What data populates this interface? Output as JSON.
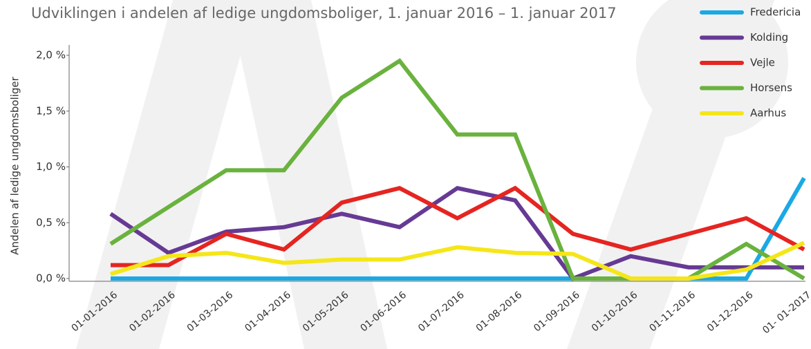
{
  "chart_data": {
    "type": "line",
    "title": "Udviklingen i andelen af ledige ungdomsboliger, 1. januar 2016 – 1. januar 2017",
    "y_label": "Andelen af ledige ungdomsboliger",
    "categories": [
      "01-01-2016",
      "01-02-2016",
      "01-03-2016",
      "01-04-2016",
      "01-05-2016",
      "01-06-2016",
      "01-07-2016",
      "01-08-2016",
      "01-09-2016",
      "01-10-2016",
      "01-11-2016",
      "01-12-2016",
      "01- 01-2017"
    ],
    "series": [
      {
        "name": "Fredericia",
        "color": "#1aa9e3",
        "values": [
          0,
          0,
          0,
          0,
          0,
          0,
          0,
          0,
          0,
          0,
          0,
          0,
          0.9
        ]
      },
      {
        "name": "Kolding",
        "color": "#663a94",
        "values": [
          0.58,
          0.23,
          0.42,
          0.46,
          0.58,
          0.46,
          0.81,
          0.7,
          0,
          0.2,
          0.1,
          0.1,
          0.1
        ]
      },
      {
        "name": "Vejle",
        "color": "#e52521",
        "values": [
          0.12,
          0.12,
          0.4,
          0.26,
          0.68,
          0.81,
          0.54,
          0.81,
          0.4,
          0.26,
          0.4,
          0.54,
          0.26
        ]
      },
      {
        "name": "Horsens",
        "color": "#6ab23e",
        "values": [
          0.31,
          0.64,
          0.97,
          0.97,
          1.62,
          1.95,
          1.29,
          1.29,
          0,
          0,
          0,
          0.31,
          0
        ]
      },
      {
        "name": "Aarhus",
        "color": "#f5e61a",
        "values": [
          0.04,
          0.2,
          0.23,
          0.14,
          0.17,
          0.17,
          0.28,
          0.23,
          0.22,
          0,
          0,
          0.08,
          0.32
        ]
      }
    ],
    "ylim": [
      0,
      2
    ],
    "yticks": [
      {
        "value": 0,
        "label": "0,0 %"
      },
      {
        "value": 0.5,
        "label": "0,5 %"
      },
      {
        "value": 1,
        "label": "1,0 %"
      },
      {
        "value": 1.5,
        "label": "1,5 %"
      },
      {
        "value": 2,
        "label": "2,0 %"
      }
    ],
    "legend": "top-right"
  }
}
